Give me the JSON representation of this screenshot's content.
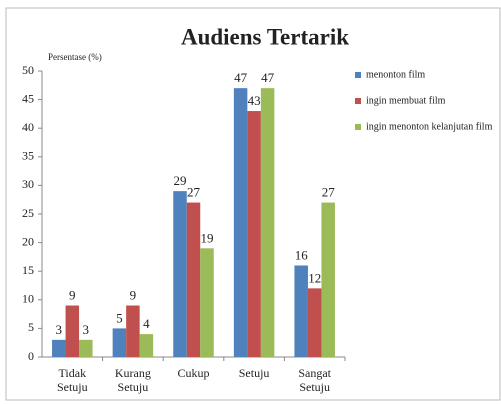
{
  "chart_data": {
    "type": "bar",
    "title": "Audiens Tertarik",
    "ylabel": "Persentase (%)",
    "categories": [
      "Tidak Setuju",
      "Kurang Setuju",
      "Cukup",
      "Setuju",
      "Sangat Setuju"
    ],
    "series": [
      {
        "name": "menonton film",
        "color": "#4f81bd",
        "values": [
          3,
          5,
          29,
          47,
          16
        ]
      },
      {
        "name": "ingin membuat film",
        "color": "#c0504d",
        "values": [
          9,
          9,
          27,
          43,
          12
        ]
      },
      {
        "name": "ingin menonton kelanjutan film",
        "color": "#9bbb59",
        "values": [
          3,
          4,
          19,
          47,
          27
        ]
      }
    ],
    "ylim": [
      0,
      50
    ],
    "yticks": [
      0,
      5,
      10,
      15,
      20,
      25,
      30,
      35,
      40,
      45,
      50
    ],
    "grid": false,
    "legend": "right"
  }
}
